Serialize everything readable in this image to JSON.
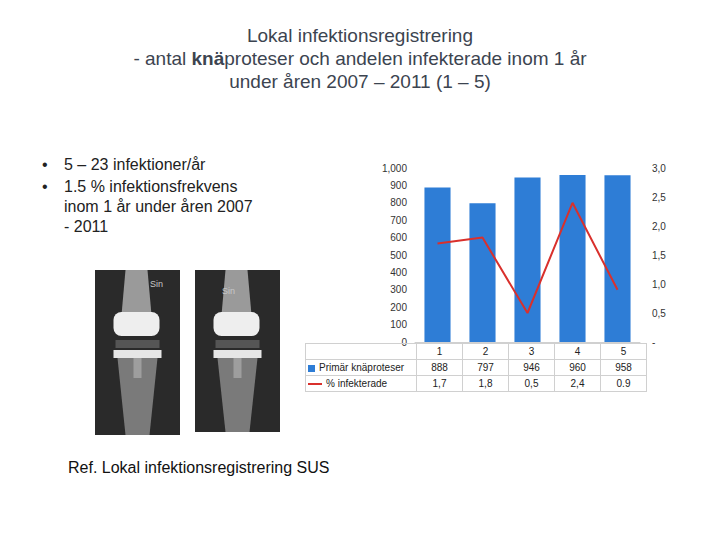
{
  "slide": {
    "title_lines": [
      [
        {
          "text": "Lokal infektionsregistrering"
        }
      ],
      [
        {
          "text": "- antal "
        },
        {
          "text": "knä",
          "bold": true
        },
        {
          "text": "proteser och andelen infekterade inom 1 år"
        }
      ],
      [
        {
          "text": "under åren 2007 – 2011 (1 – 5)"
        }
      ]
    ],
    "bullets": [
      "5 – 23 infektioner/år",
      "1.5 % infektionsfrekvens inom 1 år under åren 2007 - 2011"
    ],
    "image_labels": [
      "Sin",
      "Sin"
    ],
    "reference": "Ref. Lokal infektionsregistrering SUS"
  },
  "chart_data": {
    "type": "bar",
    "categories": [
      "1",
      "2",
      "3",
      "4",
      "5"
    ],
    "series": [
      {
        "name": "Primär knäproteser",
        "type": "bar",
        "color": "#2e7dd6",
        "values": [
          888,
          797,
          946,
          960,
          958
        ]
      },
      {
        "name": "% infekterade",
        "type": "line",
        "color": "#d9302c",
        "axis": "y2",
        "values": [
          1.7,
          1.8,
          0.5,
          2.4,
          0.9
        ],
        "value_labels": [
          "1,7",
          "1,8",
          "0,5",
          "2,4",
          "0.9"
        ]
      }
    ],
    "ylim": [
      0,
      1000
    ],
    "yticks": [
      0,
      100,
      200,
      300,
      400,
      500,
      600,
      700,
      800,
      900,
      1000
    ],
    "y2lim": [
      0,
      3
    ],
    "y2ticks": [
      {
        "value": 0,
        "label": "-"
      },
      {
        "value": 0.5,
        "label": "0,5"
      },
      {
        "value": 1,
        "label": "1,0"
      },
      {
        "value": 1.5,
        "label": "1,5"
      },
      {
        "value": 2,
        "label": "2,0"
      },
      {
        "value": 2.5,
        "label": "2,5"
      },
      {
        "value": 3,
        "label": "3,0"
      }
    ],
    "data_labels": true,
    "grid": false
  }
}
